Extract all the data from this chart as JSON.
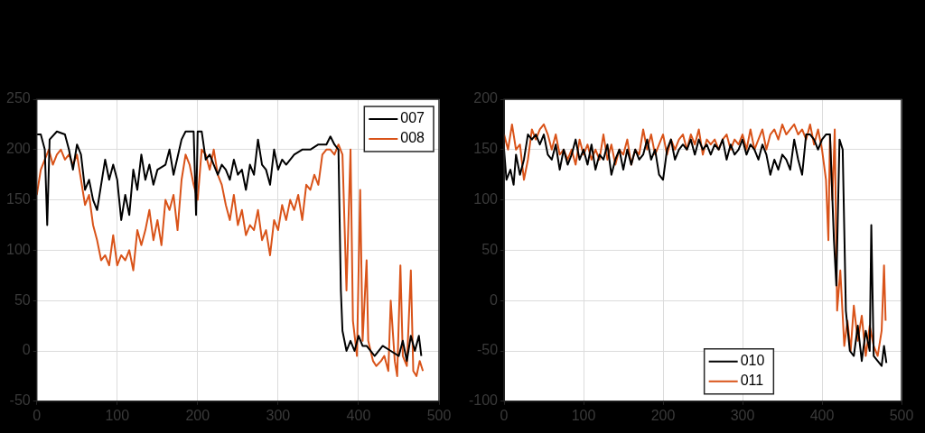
{
  "chart_data": [
    {
      "type": "line",
      "xlim": [
        0,
        500
      ],
      "xticks": [
        0,
        100,
        200,
        300,
        400,
        500
      ],
      "ylim": [
        -50,
        250
      ],
      "yticks": [
        -50,
        0,
        50,
        100,
        150,
        200,
        250
      ],
      "grid": true,
      "legend": "top right",
      "marker": "none",
      "line_style": "solid",
      "series": [
        {
          "name": "007",
          "color": "#000000",
          "x": [
            0,
            5,
            10,
            13,
            16,
            25,
            35,
            40,
            45,
            50,
            55,
            60,
            65,
            70,
            75,
            80,
            85,
            90,
            95,
            100,
            105,
            110,
            115,
            120,
            125,
            130,
            135,
            140,
            145,
            150,
            160,
            165,
            170,
            180,
            185,
            190,
            195,
            198,
            200,
            205,
            210,
            215,
            220,
            225,
            230,
            235,
            240,
            245,
            250,
            255,
            260,
            265,
            270,
            275,
            280,
            285,
            290,
            295,
            300,
            305,
            310,
            320,
            330,
            340,
            350,
            360,
            365,
            370,
            375,
            378,
            380,
            385,
            390,
            395,
            400,
            405,
            410,
            420,
            430,
            440,
            450,
            455,
            460,
            465,
            470,
            475,
            478
          ],
          "values": [
            215,
            215,
            200,
            125,
            210,
            218,
            215,
            200,
            180,
            205,
            195,
            160,
            170,
            150,
            140,
            165,
            190,
            170,
            185,
            170,
            130,
            155,
            135,
            180,
            160,
            195,
            170,
            185,
            165,
            180,
            185,
            200,
            175,
            210,
            218,
            218,
            218,
            135,
            218,
            218,
            190,
            195,
            185,
            175,
            185,
            180,
            170,
            190,
            175,
            180,
            160,
            185,
            175,
            210,
            185,
            180,
            165,
            200,
            180,
            190,
            185,
            195,
            200,
            200,
            205,
            205,
            213,
            205,
            200,
            60,
            20,
            0,
            10,
            0,
            15,
            5,
            5,
            -5,
            5,
            0,
            -5,
            10,
            -10,
            15,
            0,
            15,
            -5
          ]
        },
        {
          "name": "008",
          "color": "#d95319",
          "x": [
            0,
            5,
            10,
            15,
            20,
            25,
            30,
            35,
            40,
            45,
            50,
            55,
            60,
            65,
            70,
            75,
            80,
            85,
            90,
            95,
            100,
            105,
            110,
            115,
            120,
            125,
            130,
            135,
            140,
            145,
            150,
            155,
            160,
            165,
            170,
            175,
            180,
            185,
            190,
            195,
            200,
            205,
            210,
            215,
            220,
            225,
            230,
            235,
            240,
            245,
            250,
            255,
            260,
            265,
            270,
            275,
            280,
            285,
            290,
            295,
            300,
            305,
            310,
            315,
            320,
            325,
            330,
            335,
            340,
            345,
            350,
            355,
            360,
            365,
            370,
            375,
            380,
            385,
            390,
            393,
            398,
            402,
            405,
            410,
            412,
            418,
            422,
            428,
            432,
            437,
            440,
            445,
            448,
            452,
            455,
            460,
            465,
            468,
            472,
            476,
            480
          ],
          "values": [
            155,
            180,
            190,
            200,
            185,
            195,
            200,
            190,
            195,
            185,
            195,
            170,
            145,
            155,
            125,
            110,
            90,
            95,
            85,
            115,
            85,
            95,
            90,
            100,
            80,
            120,
            105,
            120,
            140,
            110,
            130,
            105,
            150,
            140,
            155,
            120,
            170,
            195,
            185,
            165,
            150,
            200,
            195,
            180,
            200,
            175,
            165,
            145,
            130,
            155,
            125,
            140,
            115,
            125,
            120,
            140,
            110,
            120,
            95,
            130,
            120,
            145,
            130,
            150,
            140,
            155,
            130,
            165,
            160,
            175,
            165,
            195,
            200,
            200,
            195,
            205,
            195,
            60,
            200,
            30,
            -5,
            160,
            10,
            90,
            10,
            -10,
            -15,
            -10,
            -5,
            -20,
            50,
            -10,
            -25,
            85,
            -5,
            -15,
            80,
            -20,
            -25,
            -10,
            -20
          ]
        }
      ]
    },
    {
      "type": "line",
      "xlim": [
        0,
        500
      ],
      "xticks": [
        0,
        100,
        200,
        300,
        400,
        500
      ],
      "ylim": [
        -100,
        200
      ],
      "yticks": [
        -100,
        -50,
        0,
        50,
        100,
        150,
        200
      ],
      "grid": true,
      "legend": "bottom",
      "marker": "none",
      "line_style": "solid",
      "series": [
        {
          "name": "010",
          "color": "#000000",
          "x": [
            0,
            3,
            8,
            12,
            15,
            20,
            25,
            30,
            35,
            40,
            45,
            50,
            55,
            60,
            65,
            70,
            75,
            80,
            85,
            90,
            95,
            100,
            105,
            110,
            115,
            120,
            125,
            130,
            135,
            140,
            145,
            150,
            155,
            160,
            165,
            170,
            175,
            180,
            185,
            190,
            195,
            200,
            205,
            210,
            215,
            220,
            225,
            230,
            235,
            240,
            245,
            250,
            255,
            260,
            265,
            270,
            275,
            280,
            285,
            290,
            295,
            300,
            305,
            310,
            315,
            320,
            325,
            330,
            335,
            340,
            345,
            350,
            355,
            360,
            365,
            370,
            375,
            380,
            385,
            390,
            395,
            400,
            405,
            410,
            415,
            418,
            422,
            426,
            430,
            435,
            440,
            445,
            450,
            455,
            460,
            462,
            465,
            470,
            475,
            478,
            481
          ],
          "values": [
            150,
            120,
            130,
            115,
            145,
            125,
            140,
            165,
            160,
            165,
            155,
            165,
            145,
            140,
            155,
            130,
            150,
            135,
            145,
            160,
            140,
            150,
            135,
            155,
            130,
            145,
            140,
            155,
            125,
            140,
            150,
            130,
            150,
            135,
            150,
            140,
            145,
            160,
            140,
            150,
            125,
            120,
            150,
            160,
            140,
            150,
            155,
            150,
            160,
            145,
            160,
            150,
            155,
            145,
            155,
            150,
            160,
            140,
            155,
            145,
            150,
            160,
            145,
            155,
            150,
            140,
            155,
            145,
            125,
            140,
            130,
            145,
            140,
            130,
            160,
            140,
            125,
            165,
            165,
            160,
            150,
            160,
            165,
            165,
            60,
            15,
            160,
            150,
            -10,
            -50,
            -55,
            -25,
            -60,
            -30,
            -50,
            75,
            -55,
            -60,
            -65,
            -45,
            -62
          ]
        },
        {
          "name": "011",
          "color": "#d95319",
          "x": [
            0,
            5,
            10,
            15,
            20,
            25,
            30,
            35,
            40,
            45,
            50,
            55,
            60,
            65,
            70,
            75,
            80,
            85,
            90,
            95,
            100,
            105,
            110,
            115,
            120,
            125,
            130,
            135,
            140,
            145,
            150,
            155,
            160,
            165,
            170,
            175,
            180,
            185,
            190,
            195,
            200,
            205,
            210,
            215,
            220,
            225,
            230,
            235,
            240,
            245,
            250,
            255,
            260,
            265,
            270,
            275,
            280,
            285,
            290,
            295,
            300,
            305,
            310,
            315,
            320,
            325,
            330,
            335,
            340,
            345,
            350,
            355,
            360,
            365,
            370,
            375,
            380,
            385,
            390,
            395,
            400,
            405,
            408,
            410,
            413,
            416,
            419,
            423,
            428,
            432,
            436,
            440,
            445,
            450,
            455,
            460,
            465,
            470,
            475,
            478,
            480
          ],
          "values": [
            165,
            150,
            175,
            150,
            155,
            120,
            140,
            170,
            160,
            170,
            175,
            165,
            150,
            165,
            145,
            150,
            140,
            150,
            135,
            160,
            145,
            155,
            140,
            150,
            140,
            165,
            140,
            155,
            135,
            150,
            145,
            160,
            135,
            150,
            145,
            170,
            150,
            165,
            145,
            155,
            165,
            145,
            160,
            150,
            160,
            165,
            150,
            165,
            155,
            170,
            145,
            160,
            155,
            160,
            150,
            160,
            165,
            150,
            160,
            155,
            165,
            150,
            170,
            150,
            160,
            170,
            150,
            165,
            170,
            160,
            175,
            165,
            170,
            175,
            165,
            170,
            160,
            175,
            155,
            170,
            150,
            120,
            60,
            165,
            100,
            170,
            -10,
            30,
            -45,
            -20,
            -50,
            -5,
            -40,
            -15,
            -55,
            -25,
            -45,
            -55,
            -30,
            35,
            -20
          ]
        }
      ]
    }
  ]
}
